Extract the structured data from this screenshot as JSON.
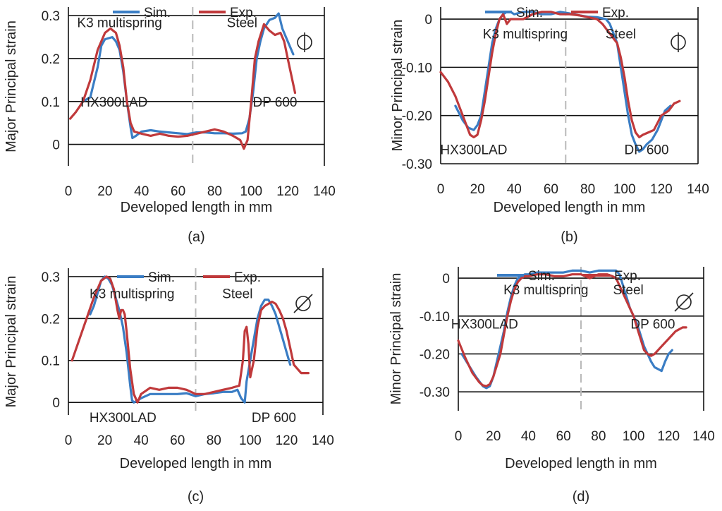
{
  "colors": {
    "sim": "#3a7dc4",
    "exp": "#c0393b"
  },
  "chart_data": [
    {
      "type": "line",
      "panel_label": "(a)",
      "title": "",
      "xlabel": "Developed length in mm",
      "ylabel": "Major Principal strain",
      "xlim": [
        0,
        140
      ],
      "ylim": [
        -0.05,
        0.32
      ],
      "xticks": [
        0,
        20,
        40,
        60,
        80,
        100,
        120,
        140
      ],
      "yticks": [
        0,
        0.1,
        0.2,
        0.3
      ],
      "ytick_labels": [
        "0",
        "0.1",
        "0.2",
        "0.3"
      ],
      "divider_x": 68,
      "symbol": "circle-vertical",
      "annotations": [
        {
          "text": "K3 multispring",
          "x": 28,
          "y": 0.285
        },
        {
          "text": "Steel",
          "x": 95,
          "y": 0.285
        },
        {
          "text": "HX300LAD",
          "x": 25,
          "y": 0.1
        },
        {
          "text": "DP 600",
          "x": 113,
          "y": 0.1
        }
      ],
      "legend": [
        "Sim.",
        "Exp."
      ],
      "series": [
        {
          "name": "Sim.",
          "color": "#3a7dc4",
          "x": [
            8,
            12,
            16,
            18,
            20,
            24,
            26,
            28,
            30,
            32,
            34,
            35,
            37,
            40,
            45,
            50,
            55,
            60,
            65,
            70,
            75,
            80,
            85,
            90,
            95,
            97,
            99,
            101,
            103,
            105,
            107,
            110,
            113,
            115,
            117,
            120,
            123
          ],
          "y": [
            0.1,
            0.11,
            0.18,
            0.23,
            0.245,
            0.25,
            0.24,
            0.22,
            0.17,
            0.1,
            0.04,
            0.015,
            0.02,
            0.03,
            0.033,
            0.03,
            0.028,
            0.026,
            0.024,
            0.028,
            0.028,
            0.026,
            0.026,
            0.025,
            0.026,
            0.03,
            0.06,
            0.12,
            0.2,
            0.24,
            0.27,
            0.29,
            0.295,
            0.305,
            0.27,
            0.24,
            0.21
          ]
        },
        {
          "name": "Exp.",
          "color": "#c0393b",
          "x": [
            1,
            4,
            8,
            12,
            16,
            20,
            23,
            26,
            28,
            30,
            32,
            34,
            36,
            40,
            45,
            50,
            55,
            60,
            65,
            70,
            75,
            80,
            85,
            90,
            94,
            96,
            98,
            100,
            102,
            104,
            107,
            110,
            113,
            116,
            118,
            120,
            122,
            124
          ],
          "y": [
            0.06,
            0.075,
            0.1,
            0.15,
            0.22,
            0.26,
            0.27,
            0.26,
            0.23,
            0.18,
            0.1,
            0.05,
            0.03,
            0.025,
            0.02,
            0.025,
            0.02,
            0.018,
            0.02,
            0.025,
            0.03,
            0.035,
            0.03,
            0.02,
            0.01,
            -0.01,
            0.01,
            0.1,
            0.2,
            0.24,
            0.28,
            0.265,
            0.255,
            0.26,
            0.24,
            0.2,
            0.16,
            0.12
          ]
        }
      ]
    },
    {
      "type": "line",
      "panel_label": "(b)",
      "title": "",
      "xlabel": "Developed length in mm",
      "ylabel": "Minor Principal strain",
      "xlim": [
        0,
        140
      ],
      "ylim": [
        -0.3,
        0.025
      ],
      "xticks": [
        0,
        20,
        40,
        60,
        80,
        100,
        120,
        140
      ],
      "yticks": [
        0,
        -0.1,
        -0.2,
        -0.3
      ],
      "ytick_labels": [
        "0",
        "-0.10",
        "-0.20",
        "-0.30"
      ],
      "divider_x": 68,
      "symbol": "circle-vertical",
      "annotations": [
        {
          "text": "K3 multispring",
          "x": 46,
          "y": -0.03
        },
        {
          "text": "Steel",
          "x": 98,
          "y": -0.03
        },
        {
          "text": "HX300LAD",
          "x": 18,
          "y": -0.27
        },
        {
          "text": "DP 600",
          "x": 112,
          "y": -0.27
        }
      ],
      "legend": [
        "Sim.",
        "Exp."
      ],
      "series": [
        {
          "name": "Sim.",
          "color": "#3a7dc4",
          "x": [
            8,
            12,
            15,
            18,
            20,
            22,
            24,
            26,
            28,
            30,
            32,
            34,
            36,
            38,
            40,
            45,
            50,
            55,
            60,
            65,
            70,
            75,
            80,
            85,
            90,
            92,
            94,
            96,
            98,
            100,
            102,
            104,
            106,
            108,
            110,
            112,
            115,
            118,
            120,
            122,
            125
          ],
          "y": [
            -0.18,
            -0.21,
            -0.225,
            -0.23,
            -0.22,
            -0.2,
            -0.15,
            -0.1,
            -0.05,
            -0.02,
            0.0,
            0.01,
            0.015,
            0.015,
            0.01,
            0.015,
            0.015,
            0.01,
            0.01,
            0.015,
            0.012,
            0.008,
            0.005,
            0.004,
            0.0,
            -0.01,
            -0.03,
            -0.05,
            -0.1,
            -0.15,
            -0.2,
            -0.24,
            -0.26,
            -0.275,
            -0.27,
            -0.26,
            -0.25,
            -0.23,
            -0.21,
            -0.19,
            -0.18
          ]
        },
        {
          "name": "Exp.",
          "color": "#c0393b",
          "x": [
            0,
            4,
            8,
            12,
            16,
            18,
            20,
            22,
            24,
            26,
            28,
            30,
            32,
            34,
            36,
            38,
            40,
            45,
            50,
            55,
            60,
            65,
            70,
            75,
            80,
            85,
            88,
            90,
            92,
            94,
            96,
            98,
            100,
            102,
            104,
            106,
            108,
            110,
            113,
            116,
            120,
            124,
            127,
            130
          ],
          "y": [
            -0.11,
            -0.13,
            -0.16,
            -0.2,
            -0.24,
            -0.245,
            -0.24,
            -0.21,
            -0.17,
            -0.12,
            -0.07,
            -0.03,
            0.0,
            0.01,
            -0.01,
            0.0,
            0.0,
            0.0,
            0.01,
            0.015,
            0.015,
            0.01,
            0.01,
            0.008,
            0.004,
            0.0,
            -0.01,
            -0.02,
            -0.03,
            -0.04,
            -0.05,
            -0.08,
            -0.12,
            -0.17,
            -0.21,
            -0.235,
            -0.245,
            -0.24,
            -0.235,
            -0.23,
            -0.2,
            -0.19,
            -0.175,
            -0.17
          ]
        }
      ]
    },
    {
      "type": "line",
      "panel_label": "(c)",
      "title": "",
      "xlabel": "Developed length in mm",
      "ylabel": "Major Principal strain",
      "xlim": [
        0,
        140
      ],
      "ylim": [
        -0.03,
        0.32
      ],
      "xticks": [
        0,
        20,
        40,
        60,
        80,
        100,
        120,
        140
      ],
      "yticks": [
        0,
        0.1,
        0.2,
        0.3
      ],
      "ytick_labels": [
        "0",
        "0.1",
        "0.2",
        "0.3"
      ],
      "divider_x": 70,
      "symbol": "circle-diagonal",
      "annotations": [
        {
          "text": "K3 multispring",
          "x": 35,
          "y": 0.26
        },
        {
          "text": "Steel",
          "x": 93,
          "y": 0.26
        },
        {
          "text": "HX300LAD",
          "x": 30,
          "y": -0.035
        },
        {
          "text": "DP 600",
          "x": 113,
          "y": -0.035
        }
      ],
      "legend": [
        "Sim.",
        "Exp."
      ],
      "series": [
        {
          "name": "Sim.",
          "color": "#3a7dc4",
          "x": [
            12,
            14,
            16,
            18,
            20,
            22,
            24,
            26,
            28,
            29,
            30,
            31,
            32,
            33,
            34,
            35,
            36,
            38,
            40,
            45,
            50,
            55,
            60,
            65,
            70,
            75,
            80,
            85,
            90,
            93,
            95,
            97,
            98,
            100,
            102,
            104,
            106,
            108,
            110,
            112,
            114,
            116,
            118,
            120,
            122
          ],
          "y": [
            0.21,
            0.23,
            0.26,
            0.29,
            0.3,
            0.295,
            0.28,
            0.25,
            0.22,
            0.2,
            0.18,
            0.15,
            0.12,
            0.08,
            0.04,
            0.005,
            0.0,
            0.005,
            0.01,
            0.02,
            0.02,
            0.02,
            0.02,
            0.022,
            0.015,
            0.02,
            0.022,
            0.025,
            0.025,
            0.03,
            0.01,
            0.0,
            0.05,
            0.1,
            0.15,
            0.2,
            0.23,
            0.245,
            0.245,
            0.23,
            0.21,
            0.18,
            0.15,
            0.12,
            0.09
          ]
        },
        {
          "name": "Exp.",
          "color": "#c0393b",
          "x": [
            2,
            6,
            10,
            14,
            18,
            21,
            23,
            25,
            27,
            28,
            29,
            30,
            31,
            32,
            34,
            36,
            38,
            40,
            45,
            50,
            55,
            60,
            65,
            70,
            75,
            80,
            85,
            90,
            94,
            96,
            97,
            98,
            99,
            100,
            102,
            104,
            106,
            108,
            110,
            112,
            114,
            116,
            118,
            120,
            122,
            124,
            128,
            132
          ],
          "y": [
            0.1,
            0.15,
            0.2,
            0.25,
            0.29,
            0.3,
            0.295,
            0.27,
            0.22,
            0.2,
            0.22,
            0.22,
            0.21,
            0.17,
            0.08,
            0.02,
            0.0,
            0.02,
            0.035,
            0.03,
            0.035,
            0.035,
            0.03,
            0.02,
            0.02,
            0.025,
            0.03,
            0.035,
            0.04,
            0.1,
            0.17,
            0.18,
            0.14,
            0.06,
            0.1,
            0.18,
            0.22,
            0.23,
            0.235,
            0.24,
            0.235,
            0.22,
            0.2,
            0.17,
            0.13,
            0.09,
            0.07,
            0.07
          ]
        }
      ]
    },
    {
      "type": "line",
      "panel_label": "(d)",
      "title": "",
      "xlabel": "Developed length in mm",
      "ylabel": "Minor Principal strain",
      "xlim": [
        0,
        140
      ],
      "ylim": [
        -0.35,
        0.03
      ],
      "xticks": [
        0,
        20,
        40,
        60,
        80,
        100,
        120,
        140
      ],
      "yticks": [
        0,
        -0.1,
        -0.2,
        -0.3
      ],
      "ytick_labels": [
        "0",
        "-0.10",
        "-0.20",
        "-0.30"
      ],
      "divider_x": 70,
      "symbol": "circle-diagonal",
      "annotations": [
        {
          "text": "K3 multispring",
          "x": 50,
          "y": -0.03
        },
        {
          "text": "Steel",
          "x": 97,
          "y": -0.03
        },
        {
          "text": "HX300LAD",
          "x": 15,
          "y": -0.12
        },
        {
          "text": "DP 600",
          "x": 111,
          "y": -0.12
        }
      ],
      "legend": [
        "Sim.",
        "Exp."
      ],
      "series": [
        {
          "name": "Sim.",
          "color": "#3a7dc4",
          "x": [
            2,
            6,
            10,
            14,
            16,
            18,
            20,
            22,
            24,
            26,
            28,
            30,
            32,
            34,
            36,
            38,
            40,
            45,
            50,
            55,
            60,
            65,
            70,
            75,
            80,
            85,
            90,
            92,
            94,
            96,
            98,
            100,
            102,
            104,
            106,
            108,
            110,
            112,
            114,
            116,
            118,
            120,
            122
          ],
          "y": [
            -0.2,
            -0.23,
            -0.26,
            -0.285,
            -0.29,
            -0.285,
            -0.26,
            -0.22,
            -0.18,
            -0.14,
            -0.09,
            -0.05,
            -0.02,
            0.0,
            0.005,
            0.01,
            0.01,
            0.015,
            0.015,
            0.015,
            0.015,
            0.02,
            0.02,
            0.015,
            0.02,
            0.02,
            0.02,
            0.01,
            -0.02,
            -0.05,
            -0.08,
            -0.1,
            -0.12,
            -0.15,
            -0.18,
            -0.2,
            -0.22,
            -0.235,
            -0.24,
            -0.245,
            -0.22,
            -0.2,
            -0.19
          ]
        },
        {
          "name": "Exp.",
          "color": "#c0393b",
          "x": [
            0,
            4,
            8,
            12,
            14,
            16,
            18,
            20,
            22,
            24,
            26,
            28,
            30,
            32,
            34,
            36,
            38,
            40,
            45,
            50,
            55,
            60,
            65,
            70,
            75,
            80,
            85,
            88,
            90,
            92,
            94,
            96,
            98,
            100,
            102,
            104,
            106,
            108,
            110,
            112,
            116,
            120,
            124,
            128,
            130
          ],
          "y": [
            -0.165,
            -0.21,
            -0.25,
            -0.275,
            -0.283,
            -0.285,
            -0.28,
            -0.26,
            -0.23,
            -0.2,
            -0.15,
            -0.1,
            -0.06,
            -0.03,
            -0.01,
            0.0,
            0.005,
            0.005,
            0.01,
            0.01,
            0.005,
            0.005,
            0.01,
            0.01,
            0.0,
            0.01,
            0.01,
            0.005,
            0.0,
            -0.02,
            -0.04,
            -0.06,
            -0.08,
            -0.1,
            -0.13,
            -0.16,
            -0.19,
            -0.2,
            -0.205,
            -0.2,
            -0.18,
            -0.16,
            -0.14,
            -0.13,
            -0.13
          ]
        }
      ]
    }
  ]
}
